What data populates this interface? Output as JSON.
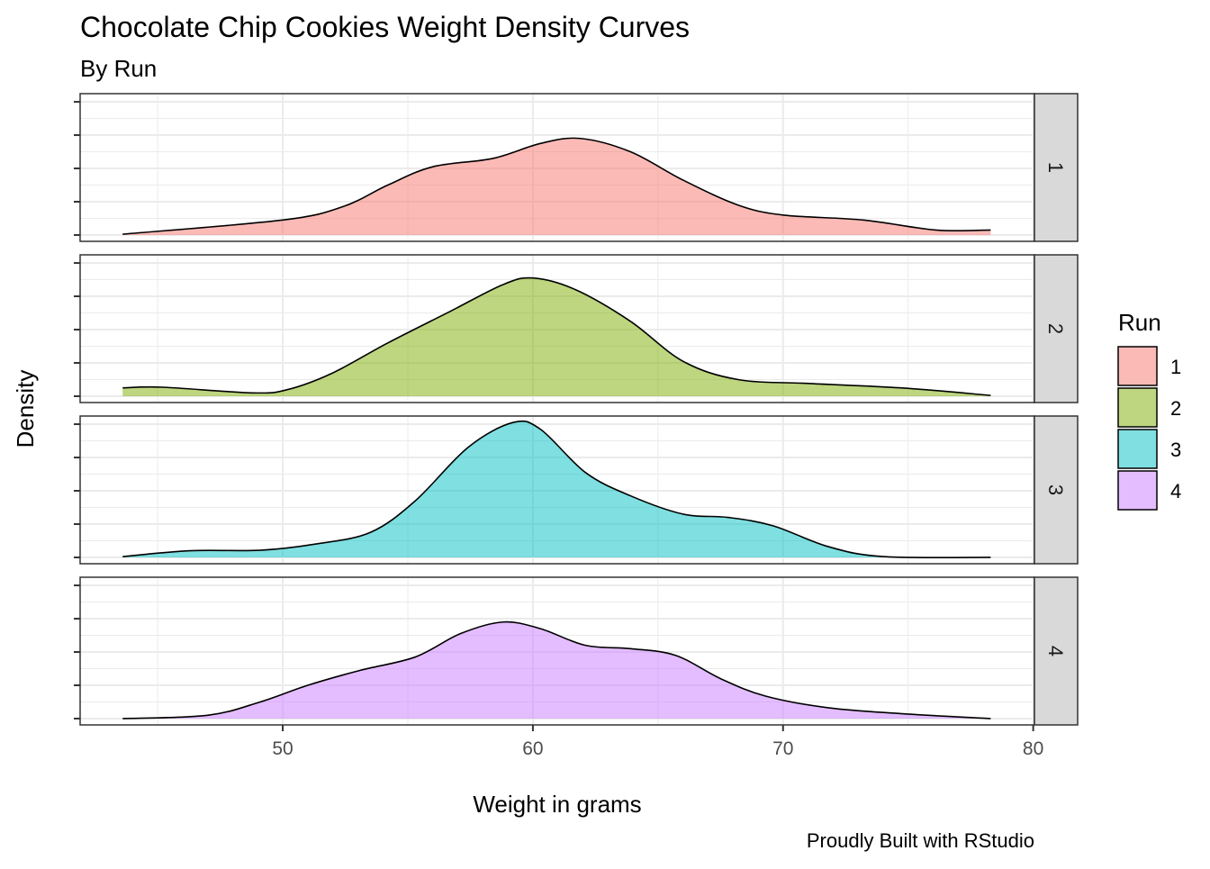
{
  "chart_data": {
    "type": "area",
    "title": "Chocolate Chip Cookies Weight Density Curves",
    "subtitle": "By Run",
    "xlabel": "Weight in grams",
    "ylabel": "Density",
    "caption": "Proudly Built with RStudio",
    "xlim": [
      41.9,
      80.05
    ],
    "x_ticks": [
      50,
      60,
      70,
      80
    ],
    "x_tick_labels": [
      "50",
      "60",
      "70",
      "80"
    ],
    "ylim": [
      -0.0038,
      0.0849
    ],
    "y_ticks": [
      0,
      0.02,
      0.04,
      0.06,
      0.08
    ],
    "y_tick_labels_shown": false,
    "grid": true,
    "facet": "Run",
    "legend": {
      "title": "Run",
      "position": "right",
      "entries": [
        "1",
        "2",
        "3",
        "4"
      ]
    },
    "series": [
      {
        "name": "1",
        "color": "#F8766D",
        "x": [
          43.6,
          50.0,
          52.4,
          54.2,
          56.0,
          58.4,
          60.3,
          61.9,
          63.9,
          66.0,
          68.2,
          70.0,
          73.2,
          76.1,
          78.3
        ],
        "y": [
          0.0005,
          0.009,
          0.017,
          0.03,
          0.041,
          0.046,
          0.055,
          0.058,
          0.05,
          0.033,
          0.018,
          0.012,
          0.009,
          0.003,
          0.003
        ]
      },
      {
        "name": "2",
        "color": "#7CAE00",
        "x": [
          43.6,
          45.2,
          48.8,
          50.2,
          52.0,
          54.2,
          56.7,
          58.8,
          60.0,
          61.7,
          63.9,
          66.0,
          68.2,
          71.1,
          74.7,
          78.3
        ],
        "y": [
          0.005,
          0.0054,
          0.002,
          0.004,
          0.014,
          0.032,
          0.051,
          0.067,
          0.071,
          0.064,
          0.045,
          0.021,
          0.01,
          0.0076,
          0.005,
          0.0005
        ]
      },
      {
        "name": "3",
        "color": "#00BFC4",
        "x": [
          43.6,
          46.3,
          49.1,
          51.3,
          53.5,
          55.3,
          57.4,
          59.2,
          60.3,
          62.1,
          63.9,
          66.0,
          67.8,
          69.6,
          71.8,
          74.0,
          78.3
        ],
        "y": [
          0.0005,
          0.004,
          0.0043,
          0.008,
          0.015,
          0.034,
          0.066,
          0.081,
          0.077,
          0.051,
          0.037,
          0.026,
          0.024,
          0.019,
          0.0065,
          0.0005,
          0
        ]
      },
      {
        "name": "4",
        "color": "#C77CFF",
        "x": [
          43.6,
          47.0,
          49.1,
          51.0,
          53.1,
          55.3,
          57.1,
          58.8,
          60.3,
          62.1,
          63.9,
          65.7,
          67.5,
          69.3,
          71.8,
          74.7,
          78.3
        ],
        "y": [
          0,
          0.002,
          0.01,
          0.02,
          0.029,
          0.037,
          0.051,
          0.058,
          0.054,
          0.044,
          0.042,
          0.038,
          0.024,
          0.0135,
          0.0065,
          0.003,
          0
        ]
      }
    ]
  }
}
